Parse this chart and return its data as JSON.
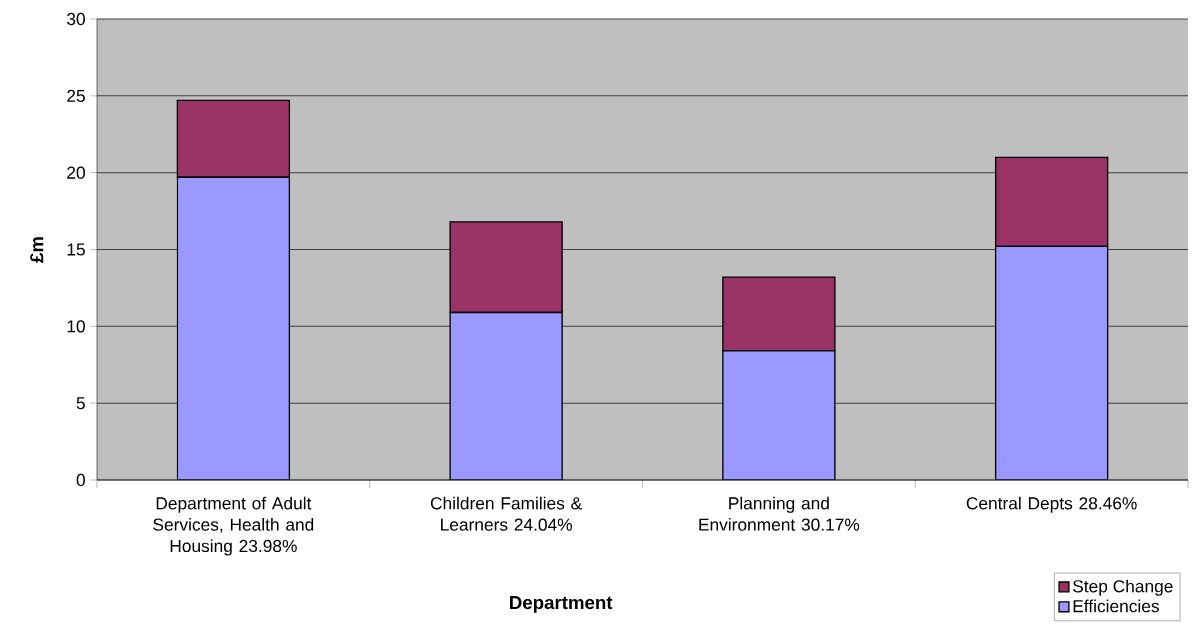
{
  "chart_data": {
    "type": "bar",
    "stacked": true,
    "xlabel": "Department",
    "ylabel": "£m",
    "categories": [
      "Department of Adult Services, Health and Housing 23.98%",
      "Children Families & Learners 24.04%",
      "Planning and Environment 30.17%",
      "Central Depts 28.46%"
    ],
    "series": [
      {
        "name": "Efficiencies",
        "color": "#9999ff",
        "values": [
          19.7,
          10.9,
          8.4,
          15.2
        ]
      },
      {
        "name": "Step Change",
        "color": "#993366",
        "values": [
          5.0,
          5.9,
          4.8,
          5.8
        ]
      }
    ],
    "ylim": [
      0,
      30
    ],
    "yticks": [
      0,
      5,
      10,
      15,
      20,
      25,
      30
    ],
    "grid": "y",
    "legend": "bottom right"
  }
}
